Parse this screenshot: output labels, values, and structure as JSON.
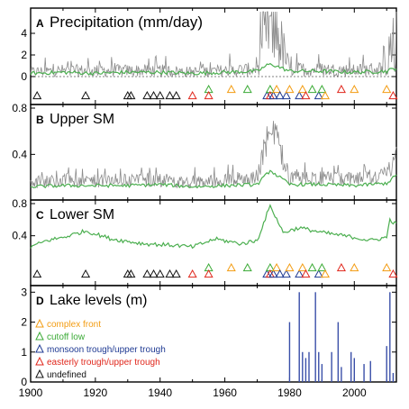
{
  "colors": {
    "gray_series": "#8c8c8c",
    "green_series": "#4caf50",
    "lake_bars": "#3a4fa8",
    "complex_front": "#f39c12",
    "cutoff_low": "#3aaa35",
    "monsoon_trough": "#1f3a93",
    "easterly_trough": "#e0261b",
    "undefined": "#111111"
  },
  "xaxis": {
    "range": [
      1900,
      2013
    ],
    "ticks": [
      "1900",
      "1920",
      "1940",
      "1960",
      "1980",
      "2000"
    ]
  },
  "panels": [
    {
      "letter": "A",
      "title": "Precipitation (mm/day)",
      "ylim": [
        -1,
        6
      ],
      "yticks": [
        "0",
        "2",
        "4"
      ]
    },
    {
      "letter": "B",
      "title": "Upper SM",
      "ylim": [
        0.06,
        0.8
      ],
      "yticks": [
        "0.4",
        "0.8"
      ]
    },
    {
      "letter": "C",
      "title": "Lower SM",
      "ylim": [
        0.06,
        0.8
      ],
      "yticks": [
        "0.4",
        "0.8"
      ]
    },
    {
      "letter": "D",
      "title": "Lake levels (m)",
      "ylim": [
        0,
        3.1
      ],
      "yticks": [
        "0",
        "1",
        "2",
        "3"
      ]
    }
  ],
  "legend": [
    {
      "label": "complex front",
      "color": "#f39c12"
    },
    {
      "label": "cutoff low",
      "color": "#3aaa35"
    },
    {
      "label": "monsoon trough/upper trough",
      "color": "#1f3a93"
    },
    {
      "label": "easterly trough/upper trough",
      "color": "#e0261b"
    },
    {
      "label": "undefined",
      "color": "#111111"
    }
  ],
  "chart_data": [
    {
      "type": "line",
      "panel": "A",
      "title": "Precipitation (mm/day)",
      "x": [
        1900,
        1910,
        1920,
        1930,
        1940,
        1950,
        1960,
        1970,
        1974,
        1980,
        1990,
        2000,
        2010,
        2013
      ],
      "series": [
        {
          "values": [
            0.5,
            0.6,
            0.6,
            0.6,
            0.6,
            0.5,
            0.6,
            0.7,
            5.6,
            0.7,
            0.7,
            0.6,
            0.8,
            2.5
          ]
        },
        {
          "values": [
            0.3,
            0.4,
            0.3,
            0.4,
            0.4,
            0.3,
            0.4,
            0.5,
            1.2,
            0.5,
            0.5,
            0.4,
            0.5,
            0.8
          ]
        }
      ],
      "ylim": [
        -1,
        6
      ],
      "events": [
        {
          "year": 1902,
          "type": "undefined"
        },
        {
          "year": 1917,
          "type": "undefined"
        },
        {
          "year": 1930,
          "type": "undefined"
        },
        {
          "year": 1931,
          "type": "undefined"
        },
        {
          "year": 1936,
          "type": "undefined"
        },
        {
          "year": 1938,
          "type": "undefined"
        },
        {
          "year": 1940,
          "type": "undefined"
        },
        {
          "year": 1943,
          "type": "undefined"
        },
        {
          "year": 1945,
          "type": "undefined"
        },
        {
          "year": 1950,
          "type": "easterly trough/upper trough"
        },
        {
          "year": 1955,
          "type": "cutoff low",
          "stack": 1
        },
        {
          "year": 1955,
          "type": "easterly trough/upper trough"
        },
        {
          "year": 1962,
          "type": "complex front",
          "stack": 1
        },
        {
          "year": 1967,
          "type": "cutoff low",
          "stack": 1
        },
        {
          "year": 1973,
          "type": "monsoon trough/upper trough"
        },
        {
          "year": 1974,
          "type": "cutoff low",
          "stack": 1
        },
        {
          "year": 1974,
          "type": "easterly trough/upper trough"
        },
        {
          "year": 1975,
          "type": "monsoon trough/upper trough"
        },
        {
          "year": 1976,
          "type": "complex front",
          "stack": 1
        },
        {
          "year": 1977,
          "type": "monsoon trough/upper trough"
        },
        {
          "year": 1979,
          "type": "monsoon trough/upper trough"
        },
        {
          "year": 1980,
          "type": "complex front",
          "stack": 1
        },
        {
          "year": 1983,
          "type": "monsoon trough/upper trough"
        },
        {
          "year": 1984,
          "type": "complex front",
          "stack": 1
        },
        {
          "year": 1985,
          "type": "easterly trough/upper trough"
        },
        {
          "year": 1987,
          "type": "cutoff low",
          "stack": 1
        },
        {
          "year": 1989,
          "type": "monsoon trough/upper trough"
        },
        {
          "year": 1990,
          "type": "cutoff low",
          "stack": 1
        },
        {
          "year": 1991,
          "type": "complex front"
        },
        {
          "year": 1996,
          "type": "easterly trough/upper trough",
          "stack": 1
        },
        {
          "year": 2000,
          "type": "complex front",
          "stack": 1
        },
        {
          "year": 2010,
          "type": "complex front",
          "stack": 1
        },
        {
          "year": 2012,
          "type": "easterly trough/upper trough"
        }
      ]
    },
    {
      "type": "line",
      "panel": "B",
      "title": "Upper SM",
      "x": [
        1900,
        1910,
        1920,
        1930,
        1940,
        1950,
        1960,
        1970,
        1974,
        1980,
        1990,
        2000,
        2010,
        2013
      ],
      "series": [
        {
          "values": [
            0.14,
            0.16,
            0.15,
            0.16,
            0.16,
            0.14,
            0.16,
            0.18,
            0.58,
            0.17,
            0.17,
            0.16,
            0.2,
            0.34
          ]
        },
        {
          "values": [
            0.12,
            0.13,
            0.13,
            0.13,
            0.14,
            0.12,
            0.13,
            0.14,
            0.26,
            0.14,
            0.14,
            0.13,
            0.15,
            0.22
          ]
        }
      ],
      "ylim": [
        0.06,
        0.8
      ]
    },
    {
      "type": "line",
      "panel": "C",
      "title": "Lower SM",
      "x": [
        1900,
        1905,
        1910,
        1917,
        1925,
        1935,
        1945,
        1950,
        1957,
        1965,
        1970,
        1974,
        1978,
        1983,
        1990,
        2000,
        2005,
        2010,
        2011,
        2013
      ],
      "series": [
        {
          "values": [
            0.26,
            0.34,
            0.38,
            0.46,
            0.36,
            0.3,
            0.28,
            0.26,
            0.36,
            0.3,
            0.34,
            0.78,
            0.44,
            0.5,
            0.44,
            0.38,
            0.34,
            0.38,
            0.6,
            0.54
          ]
        }
      ],
      "ylim": [
        0.06,
        0.8
      ],
      "events": [
        {
          "year": 1902,
          "type": "undefined"
        },
        {
          "year": 1917,
          "type": "undefined"
        },
        {
          "year": 1930,
          "type": "undefined"
        },
        {
          "year": 1931,
          "type": "undefined"
        },
        {
          "year": 1936,
          "type": "undefined"
        },
        {
          "year": 1938,
          "type": "undefined"
        },
        {
          "year": 1940,
          "type": "undefined"
        },
        {
          "year": 1943,
          "type": "undefined"
        },
        {
          "year": 1945,
          "type": "undefined"
        },
        {
          "year": 1950,
          "type": "easterly trough/upper trough"
        },
        {
          "year": 1955,
          "type": "cutoff low",
          "stack": 1
        },
        {
          "year": 1955,
          "type": "easterly trough/upper trough"
        },
        {
          "year": 1962,
          "type": "complex front",
          "stack": 1
        },
        {
          "year": 1967,
          "type": "cutoff low",
          "stack": 1
        },
        {
          "year": 1973,
          "type": "monsoon trough/upper trough"
        },
        {
          "year": 1974,
          "type": "cutoff low",
          "stack": 1
        },
        {
          "year": 1974,
          "type": "easterly trough/upper trough"
        },
        {
          "year": 1975,
          "type": "monsoon trough/upper trough"
        },
        {
          "year": 1976,
          "type": "complex front",
          "stack": 1
        },
        {
          "year": 1977,
          "type": "monsoon trough/upper trough"
        },
        {
          "year": 1979,
          "type": "monsoon trough/upper trough"
        },
        {
          "year": 1980,
          "type": "complex front",
          "stack": 1
        },
        {
          "year": 1983,
          "type": "monsoon trough/upper trough"
        },
        {
          "year": 1984,
          "type": "complex front",
          "stack": 1
        },
        {
          "year": 1985,
          "type": "easterly trough/upper trough"
        },
        {
          "year": 1987,
          "type": "cutoff low",
          "stack": 1
        },
        {
          "year": 1989,
          "type": "monsoon trough/upper trough"
        },
        {
          "year": 1990,
          "type": "cutoff low",
          "stack": 1
        },
        {
          "year": 1991,
          "type": "complex front"
        },
        {
          "year": 1996,
          "type": "easterly trough/upper trough",
          "stack": 1
        },
        {
          "year": 2000,
          "type": "complex front",
          "stack": 1
        },
        {
          "year": 2010,
          "type": "complex front",
          "stack": 1
        },
        {
          "year": 2012,
          "type": "easterly trough/upper trough"
        }
      ]
    },
    {
      "type": "bar",
      "panel": "D",
      "title": "Lake levels (m)",
      "x": [
        1980,
        1983,
        1984,
        1985,
        1986,
        1988,
        1989,
        1990,
        1993,
        1995,
        1996,
        1999,
        2000,
        2003,
        2005,
        2010,
        2011,
        2012
      ],
      "values": [
        2.0,
        3.0,
        1.0,
        0.8,
        1.0,
        3.0,
        1.0,
        0.6,
        1.0,
        2.0,
        0.5,
        1.0,
        0.8,
        0.6,
        0.7,
        1.2,
        3.0,
        0.3
      ],
      "ylim": [
        0,
        3.1
      ]
    }
  ]
}
